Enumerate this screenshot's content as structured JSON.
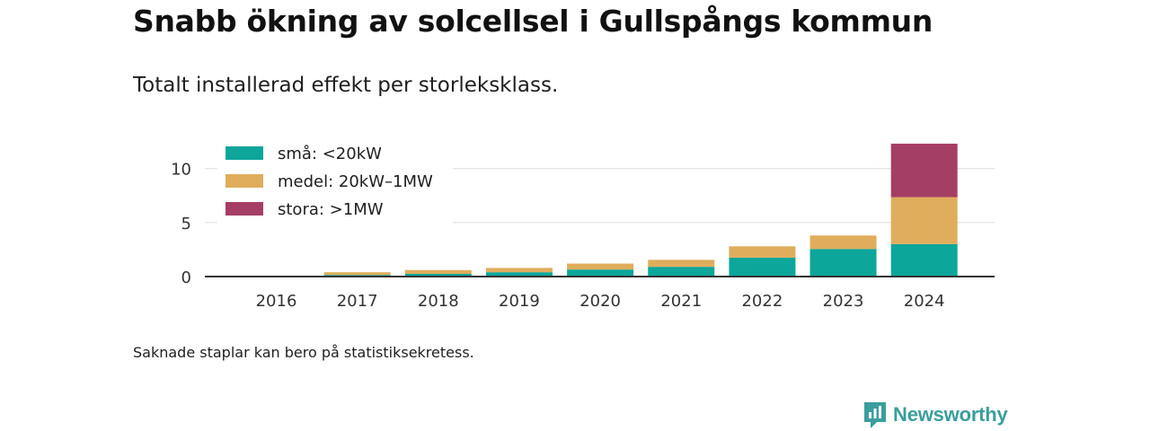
{
  "title": "Snabb ökning av solcellsel i Gullspångs kommun",
  "subtitle": "Totalt installerad effekt per storleksklass.",
  "footnote": "Saknade staplar kan bero på statistiksekretess.",
  "brand": {
    "name": "Newsworthy",
    "icon": "newsworthy-logo-icon",
    "color": "#3a9e9c"
  },
  "chart_data": {
    "type": "bar",
    "stacked": true,
    "categories": [
      "2016",
      "2017",
      "2018",
      "2019",
      "2020",
      "2021",
      "2022",
      "2023",
      "2024"
    ],
    "series": [
      {
        "name": "små: <20kW",
        "color": "#0ca69b",
        "values": [
          0,
          0.15,
          0.25,
          0.4,
          0.65,
          0.9,
          1.75,
          2.55,
          3.0
        ]
      },
      {
        "name": "medel: 20kW–1MW",
        "color": "#dfad5c",
        "values": [
          0,
          0.25,
          0.35,
          0.4,
          0.55,
          0.65,
          1.05,
          1.25,
          4.35
        ]
      },
      {
        "name": "stora: >1MW",
        "color": "#a53e64",
        "values": [
          0,
          0,
          0,
          0,
          0,
          0,
          0,
          0,
          4.95
        ]
      }
    ],
    "yticks": [
      0,
      5,
      10
    ],
    "ylim": [
      0,
      12.3
    ],
    "grid": true,
    "legend_position": "top-left"
  }
}
